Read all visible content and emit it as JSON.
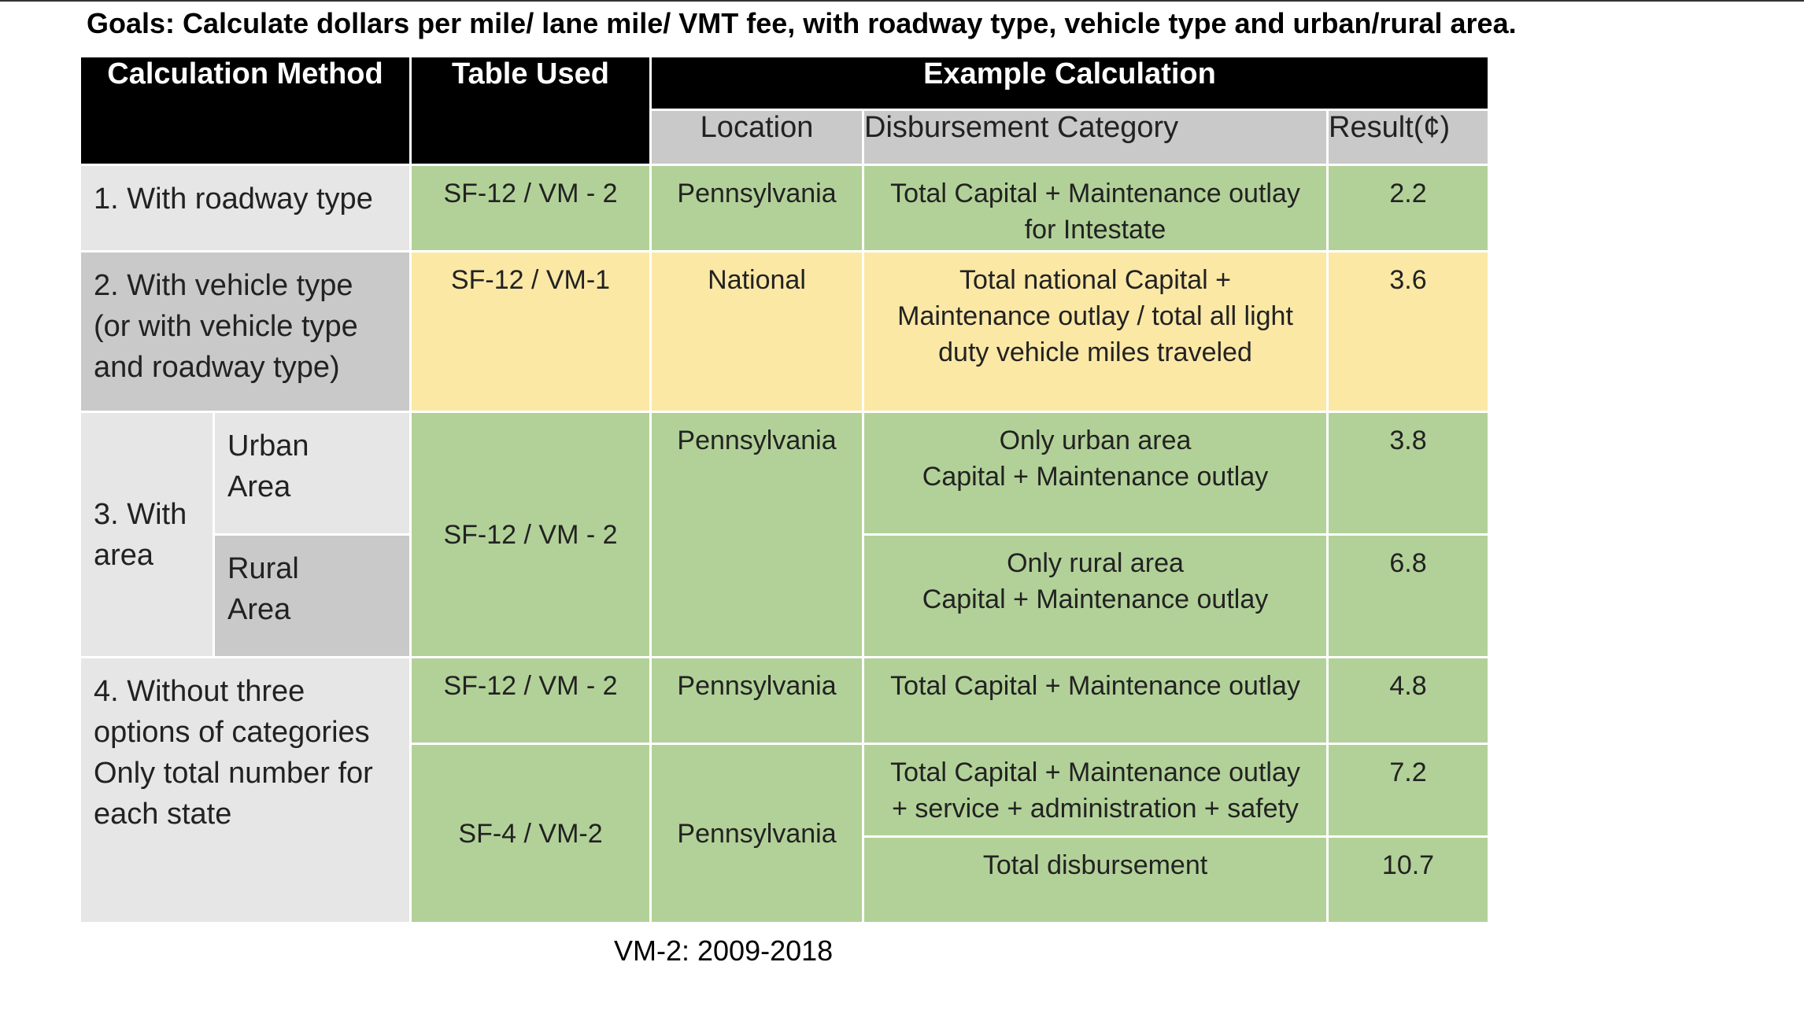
{
  "goals": "Goals: Calculate dollars per mile/ lane mile/ VMT fee, with roadway type, vehicle type and urban/rural area.",
  "header": {
    "method": "Calculation Method",
    "table_used": "Table Used",
    "example": "Example Calculation",
    "location": "Location",
    "category": "Disbursement Category",
    "result": "Result(¢)"
  },
  "rows": {
    "r1": {
      "method": "1. With roadway type",
      "table": "SF-12 / VM - 2",
      "location": "Pennsylvania",
      "category_line1": "Total Capital + Maintenance outlay",
      "category_line2": "for Intestate",
      "result": "2.2"
    },
    "r2": {
      "method_line1": "2. With vehicle type",
      "method_line2": "(or with vehicle type",
      "method_line3": "and roadway type)",
      "table": "SF-12 / VM-1",
      "location": "National",
      "category_line1": "Total national Capital +",
      "category_line2": "Maintenance outlay / total all light",
      "category_line3": "duty vehicle miles traveled",
      "result": "3.6"
    },
    "r3": {
      "method_line1": "3. With",
      "method_line2": "area",
      "urban_line1": "Urban",
      "urban_line2": "Area",
      "rural_line1": "Rural",
      "rural_line2": "Area",
      "table": "SF-12 / VM - 2",
      "location": "Pennsylvania",
      "urban_category_line1": "Only urban area",
      "urban_category_line2": "Capital + Maintenance outlay",
      "urban_result": "3.8",
      "rural_category_line1": "Only rural area",
      "rural_category_line2": "Capital + Maintenance outlay",
      "rural_result": "6.8"
    },
    "r4": {
      "method_line1": "4. Without three",
      "method_line2": "options of categories",
      "method_line3": "Only total number for",
      "method_line4": "each state",
      "a_table": "SF-12 / VM - 2",
      "a_location": "Pennsylvania",
      "a_category": "Total Capital + Maintenance outlay",
      "a_result": "4.8",
      "b_table": "SF-4 / VM-2",
      "b_location": "Pennsylvania",
      "b_category_line1": "Total Capital + Maintenance outlay",
      "b_category_line2": "+  service + administration + safety",
      "b_result": "7.2",
      "c_category": "Total disbursement",
      "c_result": "10.7"
    }
  },
  "footer": "VM-2: 2009-2018",
  "colors": {
    "header_black": "#000000",
    "subheader_gray": "#c9c9c9",
    "light_gray": "#e6e6e6",
    "green": "#b2d198",
    "yellow": "#fbe8a5"
  }
}
